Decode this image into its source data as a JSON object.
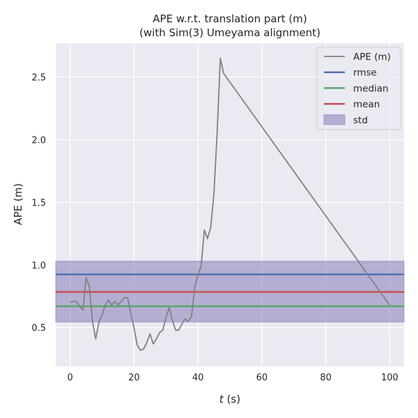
{
  "chart_data": {
    "type": "line",
    "title": [
      "APE w.r.t. translation part (m)",
      "(with Sim(3) Umeyama alignment)"
    ],
    "xlabel": "t (s)",
    "xlabel_italic_part": "t",
    "xlabel_rest": " (s)",
    "ylabel": "APE (m)",
    "xlim": [
      -4.5,
      104.5
    ],
    "ylim": [
      0.19,
      2.77
    ],
    "xticks": [
      0,
      20,
      40,
      60,
      80,
      100
    ],
    "yticks": [
      0.5,
      1.0,
      1.5,
      2.0,
      2.5
    ],
    "grid": true,
    "legend_position": "top-right",
    "series": [
      {
        "name": "APE (m)",
        "color": "#808080",
        "x": [
          0,
          1,
          2,
          3,
          4,
          5,
          6,
          7,
          8,
          9,
          10,
          11,
          12,
          13,
          14,
          15,
          16,
          17,
          18,
          19,
          20,
          21,
          22,
          23,
          24,
          25,
          26,
          27,
          28,
          29,
          30,
          31,
          32,
          33,
          34,
          35,
          36,
          37,
          38,
          39,
          40,
          41,
          42,
          43,
          44,
          45,
          46,
          47,
          48,
          100
        ],
        "y": [
          0.7,
          0.71,
          0.71,
          0.67,
          0.64,
          0.9,
          0.83,
          0.55,
          0.41,
          0.54,
          0.6,
          0.68,
          0.72,
          0.68,
          0.71,
          0.68,
          0.71,
          0.74,
          0.74,
          0.61,
          0.5,
          0.36,
          0.32,
          0.33,
          0.38,
          0.45,
          0.37,
          0.41,
          0.46,
          0.48,
          0.58,
          0.66,
          0.56,
          0.48,
          0.48,
          0.53,
          0.57,
          0.55,
          0.59,
          0.82,
          0.92,
          0.99,
          1.28,
          1.21,
          1.3,
          1.57,
          2.05,
          2.65,
          2.53,
          0.68
        ]
      }
    ],
    "stats": [
      {
        "name": "rmse",
        "value": 0.925,
        "color": "#4c72b0"
      },
      {
        "name": "median",
        "value": 0.67,
        "color": "#55a868"
      },
      {
        "name": "mean",
        "value": 0.785,
        "color": "#c44e52"
      }
    ],
    "std_band": {
      "name": "std",
      "lower": 0.545,
      "upper": 1.03,
      "color": "#8172b2"
    }
  }
}
